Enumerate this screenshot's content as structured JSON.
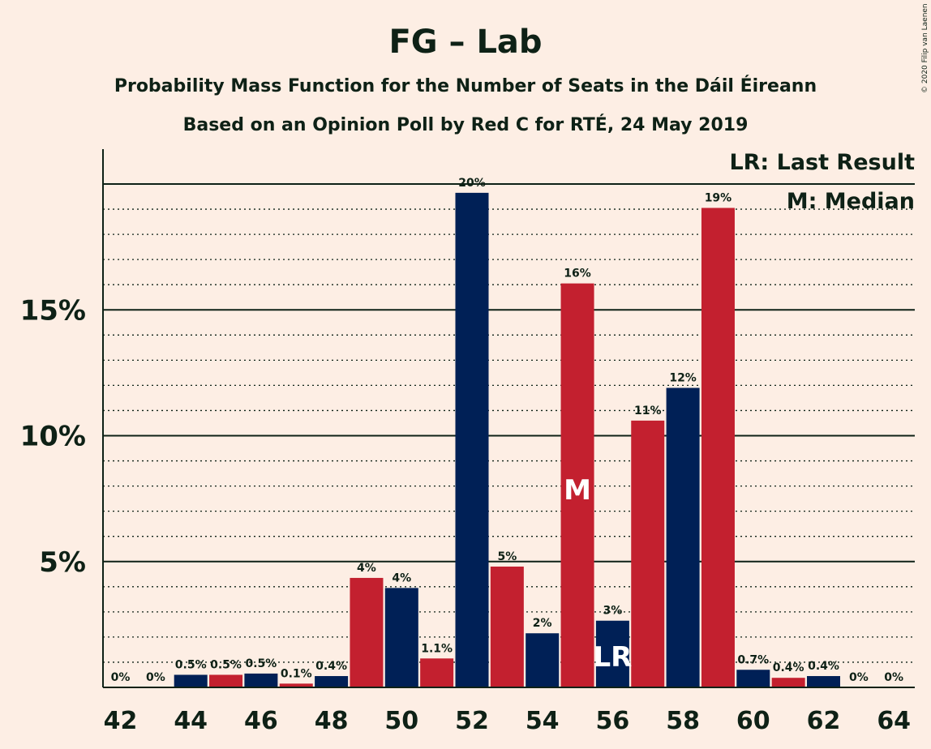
{
  "chart_data": {
    "type": "bar",
    "title": "FG – Lab",
    "subtitle_lines": [
      "Probability Mass Function for the Number of Seats in the Dáil Éireann",
      "Based on an Opinion Poll by Red C for RTÉ, 24 May 2019"
    ],
    "copyright": "© 2020 Filip van Laenen",
    "x": [
      42,
      43,
      44,
      45,
      46,
      47,
      48,
      49,
      50,
      51,
      52,
      53,
      54,
      55,
      56,
      57,
      58,
      59,
      60,
      61,
      62,
      63,
      64
    ],
    "values": [
      0,
      0,
      0.5,
      0.5,
      0.55,
      0.15,
      0.45,
      4.35,
      3.95,
      1.15,
      19.65,
      4.8,
      2.15,
      16.05,
      2.65,
      10.6,
      11.9,
      19.05,
      0.7,
      0.38,
      0.45,
      0,
      0
    ],
    "value_labels": [
      "0%",
      "0%",
      "0.5%",
      "0.5%",
      "0.5%",
      "0.1%",
      "0.4%",
      "4%",
      "4%",
      "1.1%",
      "20%",
      "5%",
      "2%",
      "16%",
      "3%",
      "11%",
      "12%",
      "19%",
      "0.7%",
      "0.4%",
      "0.4%",
      "0%",
      "0%"
    ],
    "x_ticks": [
      "42",
      "44",
      "46",
      "48",
      "50",
      "52",
      "54",
      "56",
      "58",
      "60",
      "62",
      "64"
    ],
    "y_ticks": [
      {
        "value": 5,
        "label": "5%"
      },
      {
        "value": 10,
        "label": "10%"
      },
      {
        "value": 15,
        "label": "15%"
      }
    ],
    "ylim": [
      0,
      21.4
    ],
    "colors": {
      "even_seats": "#002056",
      "odd_seats": "#C3202F",
      "background": "#FDEEE4",
      "text": "#0E2116"
    },
    "median": {
      "x": 55,
      "label": "M"
    },
    "last_result": {
      "x": 56,
      "label": "LR"
    },
    "legend": [
      "LR: Last Result",
      "M: Median"
    ],
    "legend_position": "top-right",
    "grid": "dotted-minor, solid-major"
  }
}
